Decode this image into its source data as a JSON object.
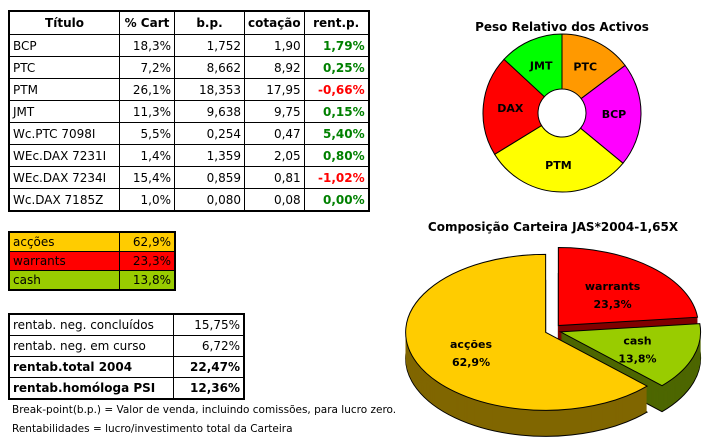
{
  "holdings": {
    "headers": [
      "Título",
      "% Cart",
      "b.p.",
      "cotação",
      "rent.p."
    ],
    "rows": [
      {
        "titulo": "BCP",
        "cart": "18,3%",
        "bp": "1,752",
        "cotacao": "1,90",
        "rent": "1,79%",
        "pos": true
      },
      {
        "titulo": "PTC",
        "cart": "7,2%",
        "bp": "8,662",
        "cotacao": "8,92",
        "rent": "0,25%",
        "pos": true
      },
      {
        "titulo": "PTM",
        "cart": "26,1%",
        "bp": "18,353",
        "cotacao": "17,95",
        "rent": "-0,66%",
        "pos": false
      },
      {
        "titulo": "JMT",
        "cart": "11,3%",
        "bp": "9,638",
        "cotacao": "9,75",
        "rent": "0,15%",
        "pos": true
      },
      {
        "titulo": "Wc.PTC 7098I",
        "cart": "5,5%",
        "bp": "0,254",
        "cotacao": "0,47",
        "rent": "5,40%",
        "pos": true
      },
      {
        "titulo": "WEc.DAX 7231I",
        "cart": "1,4%",
        "bp": "1,359",
        "cotacao": "2,05",
        "rent": "0,80%",
        "pos": true
      },
      {
        "titulo": "WEc.DAX 7234I",
        "cart": "15,4%",
        "bp": "0,859",
        "cotacao": "0,81",
        "rent": "-1,02%",
        "pos": false
      },
      {
        "titulo": "Wc.DAX 7185Z",
        "cart": "1,0%",
        "bp": "0,080",
        "cotacao": "0,08",
        "rent": "0,00%",
        "pos": true
      }
    ]
  },
  "allocation": [
    {
      "label": "acções",
      "value": "62,9%",
      "color": "#ffcc00"
    },
    {
      "label": "warrants",
      "value": "23,3%",
      "color": "#ff0000"
    },
    {
      "label": "cash",
      "value": "13,8%",
      "color": "#99cc00"
    }
  ],
  "returns": [
    {
      "label": "rentab. neg. concluídos",
      "value": "15,75%",
      "bold": false
    },
    {
      "label": "rentab. neg. em curso",
      "value": "6,72%",
      "bold": false
    },
    {
      "label": "rentab.total 2004",
      "value": "22,47%",
      "bold": true
    },
    {
      "label": "rentab.homóloga PSI",
      "value": "12,36%",
      "bold": true
    }
  ],
  "footnotes": [
    "Break-point(b.p.) = Valor de venda, incluindo comissões, para lucro zero.",
    "Rentabilidades = lucro/investimento total da Carteira"
  ],
  "chart_data": [
    {
      "type": "pie",
      "subtype": "doughnut",
      "title": "Peso Relativo dos Activos",
      "categories": [
        "PTC",
        "BCP",
        "PTM",
        "DAX",
        "JMT"
      ],
      "values": [
        12.7,
        18.3,
        26.1,
        17.8,
        11.3
      ],
      "colors": [
        "#ff9900",
        "#ff00ff",
        "#ffff00",
        "#ff0000",
        "#00ff00"
      ]
    },
    {
      "type": "pie",
      "subtype": "3d-exploded",
      "title": "Composição Carteira JAS*2004-1,65X",
      "categories": [
        "warrants",
        "cash",
        "acções"
      ],
      "values": [
        23.3,
        13.8,
        62.9
      ],
      "value_labels": [
        "23,3%",
        "13,8%",
        "62,9%"
      ],
      "colors": [
        "#ff0000",
        "#99cc00",
        "#ffcc00"
      ],
      "side_colors": [
        "#800000",
        "#4d6600",
        "#806600"
      ]
    }
  ]
}
